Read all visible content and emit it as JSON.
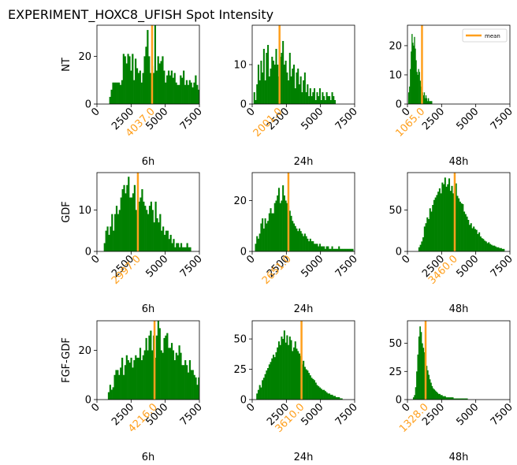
{
  "figure": {
    "title": "EXPERIMENT_HOXC8_UFISH  Spot Intensity",
    "legend_label": "mean",
    "bar_color": "#008000",
    "mean_color": "#ff9f1c"
  },
  "chart_data": [
    {
      "type": "bar",
      "row_label": "NT",
      "col_label": "6h",
      "xlim": [
        0,
        7500
      ],
      "ylim": [
        0,
        33
      ],
      "yticks": [
        0,
        20
      ],
      "mean": 4037.0,
      "mean_label": "4037.0",
      "x_start": 900,
      "bin_width": 110,
      "values": [
        3,
        6,
        9,
        9,
        9,
        9,
        9,
        8,
        10,
        21,
        20,
        17,
        21,
        20,
        14,
        21,
        10,
        19,
        15,
        13,
        14,
        9,
        13,
        20,
        24,
        31,
        20,
        13,
        16,
        13,
        34,
        14,
        20,
        17,
        18,
        20,
        14,
        9,
        12,
        14,
        12,
        14,
        11,
        13,
        9,
        8,
        8,
        12,
        11,
        14,
        8,
        10,
        8,
        10,
        9,
        7,
        9,
        12,
        8,
        6
      ]
    },
    {
      "type": "bar",
      "row_label": "NT",
      "col_label": "24h",
      "xlim": [
        0,
        7500
      ],
      "ylim": [
        0,
        20
      ],
      "yticks": [
        0,
        10
      ],
      "mean": 2001.0,
      "mean_label": "2001.0",
      "x_start": 100,
      "bin_width": 100,
      "values": [
        3,
        1,
        5,
        10,
        6,
        11,
        8,
        14,
        6,
        13,
        15,
        7,
        9,
        12,
        11,
        10,
        14,
        10,
        7,
        12,
        13,
        16,
        10,
        11,
        8,
        6,
        13,
        7,
        9,
        10,
        4,
        8,
        9,
        5,
        7,
        3,
        6,
        8,
        3,
        5,
        2,
        4,
        2,
        3,
        4,
        1,
        3,
        2,
        4,
        1,
        3,
        2,
        1,
        3,
        2,
        2,
        1,
        3,
        2,
        1
      ]
    },
    {
      "type": "bar",
      "row_label": "NT",
      "col_label": "48h",
      "xlim": [
        0,
        7500
      ],
      "ylim": [
        0,
        27
      ],
      "yticks": [
        0,
        10,
        20
      ],
      "mean": 1065.0,
      "mean_label": "1065.0",
      "x_start": 0,
      "bin_width": 60,
      "values": [
        0,
        4,
        6,
        12,
        18,
        24,
        21,
        20,
        23,
        19,
        15,
        11,
        10,
        12,
        11,
        8,
        6,
        5,
        4,
        3,
        4,
        2,
        3,
        2,
        1,
        2,
        1,
        1,
        1,
        1
      ]
    },
    {
      "type": "bar",
      "row_label": "GDF",
      "col_label": "6h",
      "xlim": [
        0,
        7500
      ],
      "ylim": [
        0,
        19
      ],
      "yticks": [
        0,
        10
      ],
      "mean": 2997.0,
      "mean_label": "2997.0",
      "x_start": 500,
      "bin_width": 110,
      "values": [
        2,
        5,
        6,
        4,
        6,
        9,
        5,
        9,
        11,
        9,
        10,
        13,
        15,
        16,
        14,
        16,
        18,
        13,
        13,
        14,
        16,
        10,
        9,
        12,
        13,
        15,
        12,
        11,
        10,
        9,
        11,
        12,
        10,
        7,
        12,
        8,
        7,
        9,
        5,
        6,
        4,
        5,
        5,
        3,
        4,
        2,
        3,
        1,
        2,
        2,
        1,
        2,
        1,
        1,
        1,
        2,
        1,
        1
      ]
    },
    {
      "type": "bar",
      "row_label": "GDF",
      "col_label": "24h",
      "xlim": [
        0,
        7500
      ],
      "ylim": [
        0,
        31
      ],
      "yticks": [
        0,
        20
      ],
      "mean": 2651.0,
      "mean_label": "2651.0",
      "x_start": 200,
      "bin_width": 100,
      "values": [
        3,
        6,
        5,
        7,
        11,
        13,
        9,
        13,
        11,
        12,
        15,
        17,
        15,
        15,
        19,
        20,
        22,
        25,
        19,
        20,
        26,
        22,
        20,
        19,
        18,
        16,
        14,
        12,
        11,
        10,
        9,
        8,
        9,
        8,
        7,
        6,
        7,
        6,
        5,
        4,
        5,
        4,
        4,
        3,
        3,
        3,
        2,
        3,
        2,
        2,
        2,
        1,
        2,
        2,
        1,
        1,
        2,
        1,
        1,
        1,
        1,
        2,
        1,
        1,
        1,
        1,
        1,
        1,
        1,
        1,
        1,
        1
      ]
    },
    {
      "type": "bar",
      "row_label": "GDF",
      "col_label": "48h",
      "xlim": [
        0,
        7500
      ],
      "ylim": [
        0,
        95
      ],
      "yticks": [
        0,
        50
      ],
      "mean": 3460.0,
      "mean_label": "3460.0",
      "x_start": 800,
      "bin_width": 100,
      "values": [
        5,
        8,
        12,
        17,
        30,
        34,
        41,
        39,
        52,
        48,
        56,
        62,
        65,
        68,
        72,
        76,
        70,
        83,
        81,
        89,
        78,
        81,
        88,
        73,
        79,
        70,
        79,
        82,
        67,
        64,
        60,
        58,
        57,
        48,
        45,
        42,
        38,
        32,
        34,
        28,
        30,
        27,
        26,
        21,
        23,
        18,
        16,
        15,
        13,
        12,
        10,
        11,
        9,
        8,
        7,
        7,
        6,
        5,
        5,
        4,
        4,
        3,
        3
      ]
    },
    {
      "type": "bar",
      "row_label": "FGF-GDF",
      "col_label": "6h",
      "xlim": [
        0,
        7500
      ],
      "ylim": [
        0,
        32
      ],
      "yticks": [
        0,
        20
      ],
      "mean": 4216.0,
      "mean_label": "4216.0",
      "x_start": 800,
      "bin_width": 110,
      "values": [
        3,
        6,
        4,
        5,
        10,
        12,
        12,
        10,
        13,
        17,
        10,
        14,
        18,
        16,
        15,
        17,
        13,
        16,
        18,
        17,
        17,
        21,
        16,
        18,
        20,
        25,
        20,
        26,
        28,
        20,
        26,
        17,
        26,
        32,
        29,
        20,
        19,
        25,
        26,
        27,
        21,
        21,
        23,
        20,
        16,
        19,
        18,
        22,
        19,
        14,
        14,
        16,
        14,
        11,
        16,
        12,
        12,
        10,
        9,
        6,
        9,
        6
      ]
    },
    {
      "type": "bar",
      "row_label": "FGF-GDF",
      "col_label": "24h",
      "xlim": [
        0,
        7500
      ],
      "ylim": [
        0,
        65
      ],
      "yticks": [
        0,
        25,
        50
      ],
      "mean": 3610.0,
      "mean_label": "3610.0",
      "x_start": 300,
      "bin_width": 100,
      "values": [
        5,
        8,
        12,
        10,
        16,
        18,
        21,
        24,
        26,
        29,
        31,
        34,
        37,
        35,
        39,
        43,
        48,
        45,
        52,
        50,
        57,
        47,
        53,
        45,
        52,
        49,
        40,
        43,
        48,
        42,
        40,
        38,
        36,
        29,
        32,
        27,
        25,
        24,
        22,
        20,
        18,
        17,
        16,
        14,
        12,
        11,
        10,
        9,
        8,
        8,
        7,
        6,
        5,
        5,
        4,
        4,
        3,
        3,
        2,
        2,
        2,
        1,
        1
      ]
    },
    {
      "type": "bar",
      "row_label": "FGF-GDF",
      "col_label": "48h",
      "xlim": [
        0,
        7500
      ],
      "ylim": [
        0,
        70
      ],
      "yticks": [
        0,
        25,
        50
      ],
      "mean": 1328.0,
      "mean_label": "1328.0",
      "x_start": 400,
      "bin_width": 80,
      "values": [
        2,
        4,
        11,
        25,
        40,
        56,
        65,
        60,
        50,
        46,
        42,
        37,
        30,
        26,
        22,
        18,
        15,
        12,
        10,
        9,
        8,
        7,
        6,
        5,
        5,
        4,
        4,
        3,
        3,
        3,
        2,
        2,
        2,
        2,
        2,
        2,
        2,
        1,
        1,
        1,
        1,
        1,
        1,
        1,
        1,
        1,
        1,
        1,
        1,
        1
      ]
    }
  ]
}
